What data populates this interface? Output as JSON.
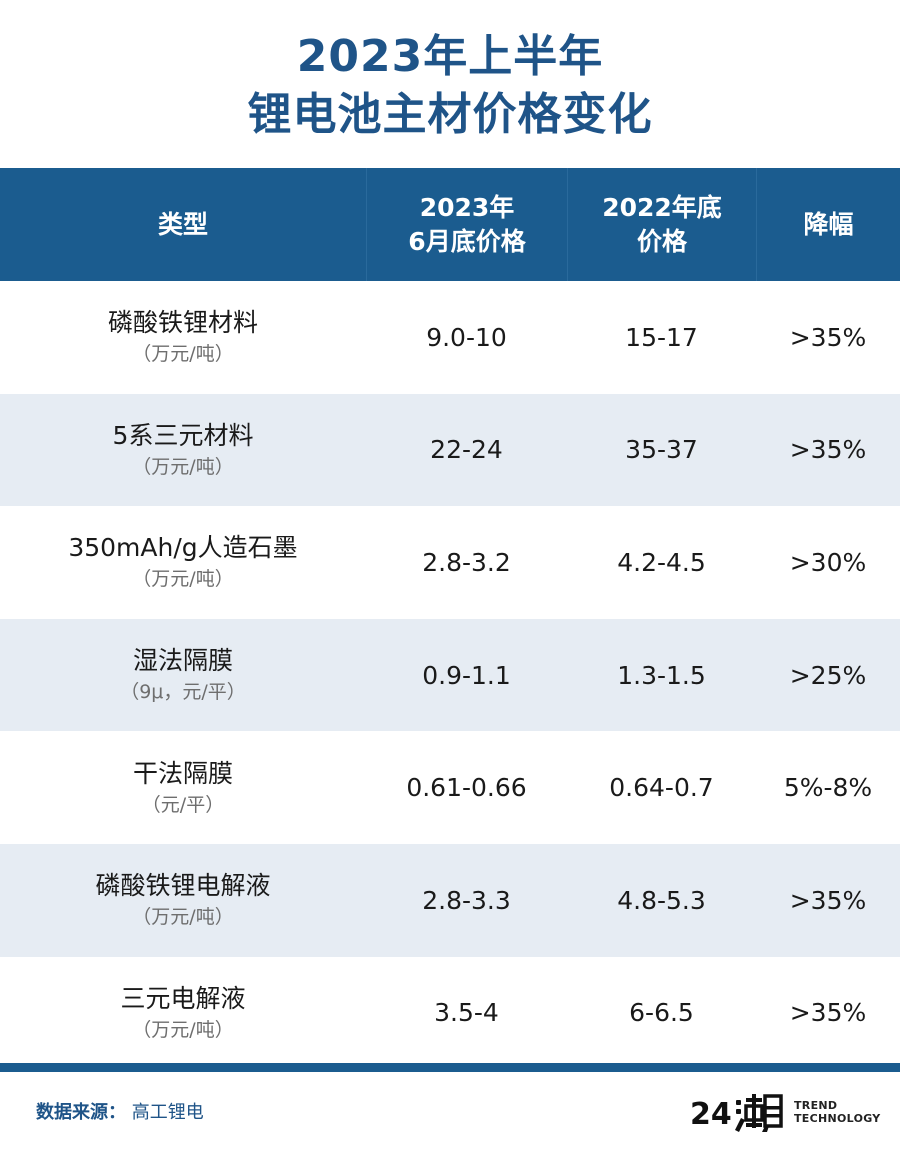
{
  "title": {
    "line1": "2023年上半年",
    "line2": "锂电池主材价格变化"
  },
  "header": {
    "type": "类型",
    "col2_line1": "2023年",
    "col2_line2": "6月底价格",
    "col3_line1": "2022年底",
    "col3_line2": "价格",
    "col4": "降幅"
  },
  "rows": [
    {
      "name": "磷酸铁锂材料",
      "unit": "（万元/吨）",
      "jun2023": "9.0-10",
      "end2022": "15-17",
      "decline": ">35%"
    },
    {
      "name": "5系三元材料",
      "unit": "（万元/吨）",
      "jun2023": "22-24",
      "end2022": "35-37",
      "decline": ">35%"
    },
    {
      "name": "350mAh/g人造石墨",
      "unit": "（万元/吨）",
      "jun2023": "2.8-3.2",
      "end2022": "4.2-4.5",
      "decline": ">30%"
    },
    {
      "name": "湿法隔膜",
      "unit": "（9μ，元/平）",
      "jun2023": "0.9-1.1",
      "end2022": "1.3-1.5",
      "decline": ">25%"
    },
    {
      "name": "干法隔膜",
      "unit": "（元/平）",
      "jun2023": "0.61-0.66",
      "end2022": "0.64-0.7",
      "decline": "5%-8%"
    },
    {
      "name": "磷酸铁锂电解液",
      "unit": "（万元/吨）",
      "jun2023": "2.8-3.3",
      "end2022": "4.8-5.3",
      "decline": ">35%"
    },
    {
      "name": "三元电解液",
      "unit": "（万元/吨）",
      "jun2023": "3.5-4",
      "end2022": "6-6.5",
      "decline": ">35%"
    }
  ],
  "footer": {
    "source_label": "数据来源：",
    "source_value": "高工锂电",
    "logo_line1": "TREND",
    "logo_line2": "TECHNOLOGY",
    "logo_mark_text": "24潮"
  },
  "colors": {
    "accent": "#1b5c8f",
    "title": "#1f5488",
    "row_alt": "#e6ecf3"
  },
  "chart_data": {
    "type": "table",
    "title": "2023年上半年 锂电池主材价格变化",
    "columns": [
      "类型",
      "2023年6月底价格",
      "2022年底价格",
      "降幅"
    ],
    "rows": [
      [
        "磷酸铁锂材料（万元/吨）",
        "9.0-10",
        "15-17",
        ">35%"
      ],
      [
        "5系三元材料（万元/吨）",
        "22-24",
        "35-37",
        ">35%"
      ],
      [
        "350mAh/g人造石墨（万元/吨）",
        "2.8-3.2",
        "4.2-4.5",
        ">30%"
      ],
      [
        "湿法隔膜（9μ，元/平）",
        "0.9-1.1",
        "1.3-1.5",
        ">25%"
      ],
      [
        "干法隔膜（元/平）",
        "0.61-0.66",
        "0.64-0.7",
        "5%-8%"
      ],
      [
        "磷酸铁锂电解液（万元/吨）",
        "2.8-3.3",
        "4.8-5.3",
        ">35%"
      ],
      [
        "三元电解液（万元/吨）",
        "3.5-4",
        "6-6.5",
        ">35%"
      ]
    ]
  }
}
